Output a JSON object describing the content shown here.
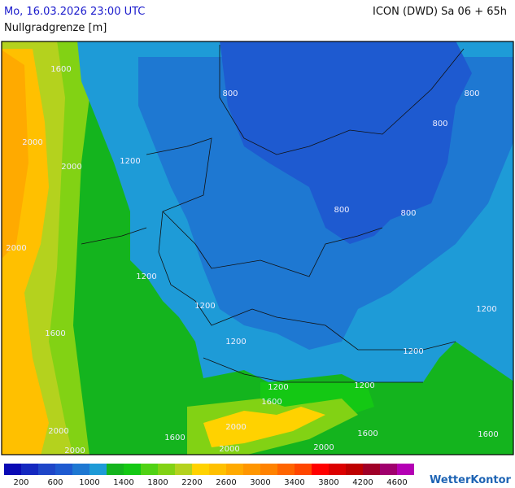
{
  "header": {
    "datetime": "Mo, 16.03.2026 23:00 UTC",
    "model": "ICON (DWD) Sa 06 + 65h",
    "title": "Nullgradgrenze [m]"
  },
  "map": {
    "contour_labels": [
      "1600",
      "800",
      "800",
      "800",
      "2000",
      "2000",
      "1200",
      "800",
      "800",
      "2000",
      "1200",
      "1200",
      "1200",
      "1600",
      "1200",
      "1200",
      "1200",
      "1200",
      "1600",
      "2000",
      "2000",
      "1600",
      "1600",
      "1600",
      "2000",
      "2000",
      "2000"
    ]
  },
  "legend": {
    "labels": [
      "200",
      "600",
      "1000",
      "1400",
      "1800",
      "2200",
      "2600",
      "3000",
      "3400",
      "3800",
      "4200",
      "4600"
    ],
    "colors": [
      "#0a0ab4",
      "#1428c0",
      "#1e46c8",
      "#1e5ad0",
      "#1e78d2",
      "#1e9bd7",
      "#14b41e",
      "#14c814",
      "#50d214",
      "#82d214",
      "#b4d21e",
      "#ffd200",
      "#ffc000",
      "#ffaa00",
      "#ff9600",
      "#ff8200",
      "#ff6400",
      "#ff4600",
      "#ff0000",
      "#dc0000",
      "#be0000",
      "#a00028",
      "#a0006e",
      "#b400b4"
    ]
  },
  "brand": "WetterKontor"
}
